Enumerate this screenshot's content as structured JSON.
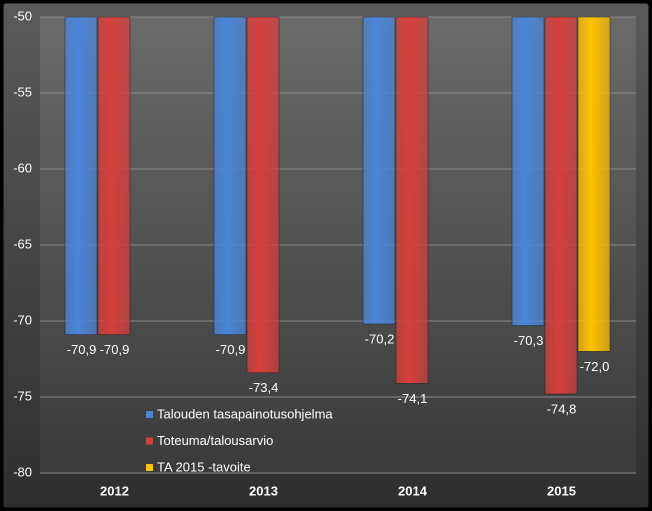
{
  "chart_data": {
    "type": "bar",
    "categories": [
      "2012",
      "2013",
      "2014",
      "2015"
    ],
    "series": [
      {
        "name": "Talouden tasapainotusohjelma",
        "color": "#4a86d8",
        "values": [
          -70.9,
          -70.9,
          -70.2,
          -70.3
        ],
        "value_labels": [
          "-70,9",
          "-70,9",
          "-70,2",
          "-70,3"
        ]
      },
      {
        "name": "Toteuma/talousarvio",
        "color": "#d63f3c",
        "values": [
          -70.9,
          -73.4,
          -74.1,
          -74.8
        ],
        "value_labels": [
          "-70,9",
          "-73,4",
          "-74,1",
          "-74,8"
        ]
      },
      {
        "name": "TA 2015 -tavoite",
        "color": "#ffc000",
        "values": [
          null,
          null,
          null,
          -72.0
        ],
        "value_labels": [
          null,
          null,
          null,
          "-72,0"
        ]
      }
    ],
    "ylim": [
      -80,
      -50
    ],
    "yticks": [
      -80,
      -75,
      -70,
      -65,
      -60,
      -55,
      -50
    ],
    "grid": true
  }
}
